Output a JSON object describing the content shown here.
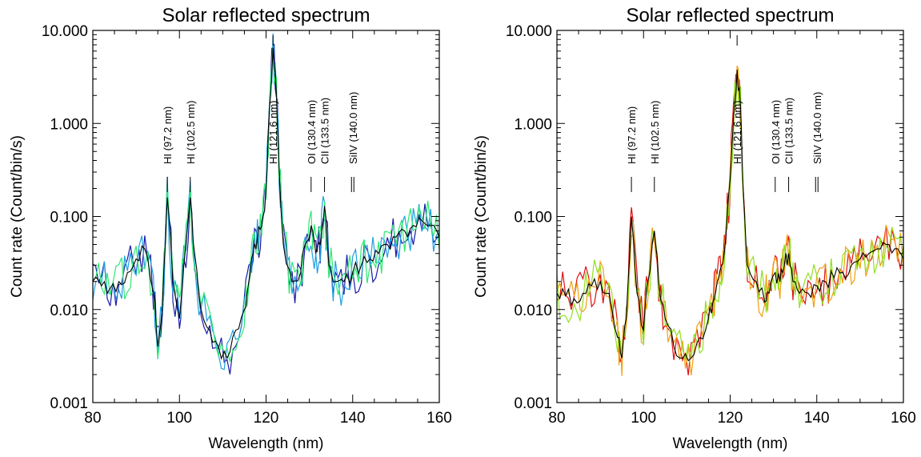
{
  "chart_data": [
    {
      "type": "line",
      "title": "Solar reflected spectrum",
      "xlabel": "Wavelength (nm)",
      "ylabel": "Count rate (Count/bin/s)",
      "xlim": [
        80,
        160
      ],
      "ylim": [
        0.001,
        10
      ],
      "y_scale": "log",
      "x_ticks": [
        "80",
        "100",
        "120",
        "140",
        "160"
      ],
      "y_ticks": [
        "0.001",
        "0.010",
        "0.100",
        "1.000",
        "10.000"
      ],
      "grid": false,
      "legend": "none",
      "annotations": [
        {
          "text": "HI (97.2 nm)",
          "x": 97.2
        },
        {
          "text": "HI (102.5 nm)",
          "x": 102.5
        },
        {
          "text": "HI (121.6 nm)",
          "x": 121.6
        },
        {
          "text": "OI (130.4 nm)",
          "x": 130.4
        },
        {
          "text": "CII (133.5 nm)",
          "x": 133.5
        },
        {
          "text": "SiIV (140.0 nm)",
          "x": 140.0
        }
      ],
      "series": [
        {
          "color": "#1a1aa8"
        },
        {
          "color": "#1fa0e0"
        },
        {
          "color": "#2ee870"
        },
        {
          "color": "#000000"
        }
      ],
      "x": [
        80,
        82,
        84,
        86,
        88,
        90,
        92,
        94,
        95,
        96,
        97.2,
        98.5,
        100,
        101,
        102.5,
        103.5,
        105,
        107,
        109,
        111,
        113,
        115,
        116,
        117,
        118,
        119,
        120,
        120.8,
        121.6,
        122.4,
        123,
        124,
        126,
        128,
        129,
        130.4,
        131.5,
        132.5,
        133.5,
        134.5,
        136,
        138,
        140,
        142,
        144,
        146,
        148,
        150,
        152,
        154,
        156,
        158,
        160
      ],
      "y": [
        0.02,
        0.018,
        0.017,
        0.02,
        0.025,
        0.035,
        0.045,
        0.015,
        0.004,
        0.01,
        0.16,
        0.02,
        0.008,
        0.03,
        0.16,
        0.04,
        0.01,
        0.006,
        0.004,
        0.003,
        0.006,
        0.01,
        0.02,
        0.04,
        0.06,
        0.08,
        0.2,
        1.5,
        6.5,
        2.0,
        0.35,
        0.05,
        0.02,
        0.025,
        0.05,
        0.08,
        0.04,
        0.05,
        0.13,
        0.03,
        0.02,
        0.02,
        0.025,
        0.03,
        0.035,
        0.04,
        0.05,
        0.06,
        0.07,
        0.08,
        0.09,
        0.08,
        0.06
      ]
    },
    {
      "type": "line",
      "title": "Solar reflected spectrum",
      "xlabel": "Wavelength (nm)",
      "ylabel": "Count rate (Count/bin/s)",
      "xlim": [
        80,
        160
      ],
      "ylim": [
        0.001,
        10
      ],
      "y_scale": "log",
      "x_ticks": [
        "80",
        "100",
        "120",
        "140",
        "160"
      ],
      "y_ticks": [
        "0.001",
        "0.010",
        "0.100",
        "1.000",
        "10.000"
      ],
      "grid": false,
      "legend": "none",
      "annotations": [
        {
          "text": "HI (97.2 nm)",
          "x": 97.2
        },
        {
          "text": "HI (102.5 nm)",
          "x": 102.5
        },
        {
          "text": "HI (121.6 nm)",
          "x": 121.6
        },
        {
          "text": "OI (130.4 nm)",
          "x": 130.4
        },
        {
          "text": "CII (133.5 nm)",
          "x": 133.5
        },
        {
          "text": "SiIV (140.0 nm)",
          "x": 140.0
        }
      ],
      "series": [
        {
          "color": "#e01010"
        },
        {
          "color": "#f0a010"
        },
        {
          "color": "#90e020"
        },
        {
          "color": "#000000"
        }
      ],
      "x": [
        80,
        82,
        84,
        86,
        88,
        90,
        92,
        94,
        95,
        96,
        97.2,
        98.5,
        100,
        101,
        102.5,
        103.5,
        105,
        107,
        109,
        111,
        113,
        115,
        116,
        117,
        118,
        119,
        120,
        120.8,
        121.6,
        122.4,
        123,
        124,
        126,
        128,
        129,
        130.4,
        131.5,
        132.5,
        133.5,
        134.5,
        136,
        138,
        140,
        142,
        144,
        146,
        148,
        150,
        152,
        154,
        156,
        158,
        160
      ],
      "y": [
        0.015,
        0.014,
        0.013,
        0.015,
        0.018,
        0.02,
        0.015,
        0.005,
        0.003,
        0.008,
        0.1,
        0.015,
        0.006,
        0.02,
        0.07,
        0.02,
        0.008,
        0.004,
        0.003,
        0.003,
        0.005,
        0.008,
        0.012,
        0.02,
        0.03,
        0.06,
        0.25,
        1.2,
        3.8,
        1.5,
        0.2,
        0.03,
        0.02,
        0.012,
        0.015,
        0.025,
        0.02,
        0.03,
        0.04,
        0.02,
        0.015,
        0.015,
        0.018,
        0.02,
        0.022,
        0.025,
        0.03,
        0.035,
        0.04,
        0.045,
        0.05,
        0.045,
        0.035
      ]
    }
  ]
}
